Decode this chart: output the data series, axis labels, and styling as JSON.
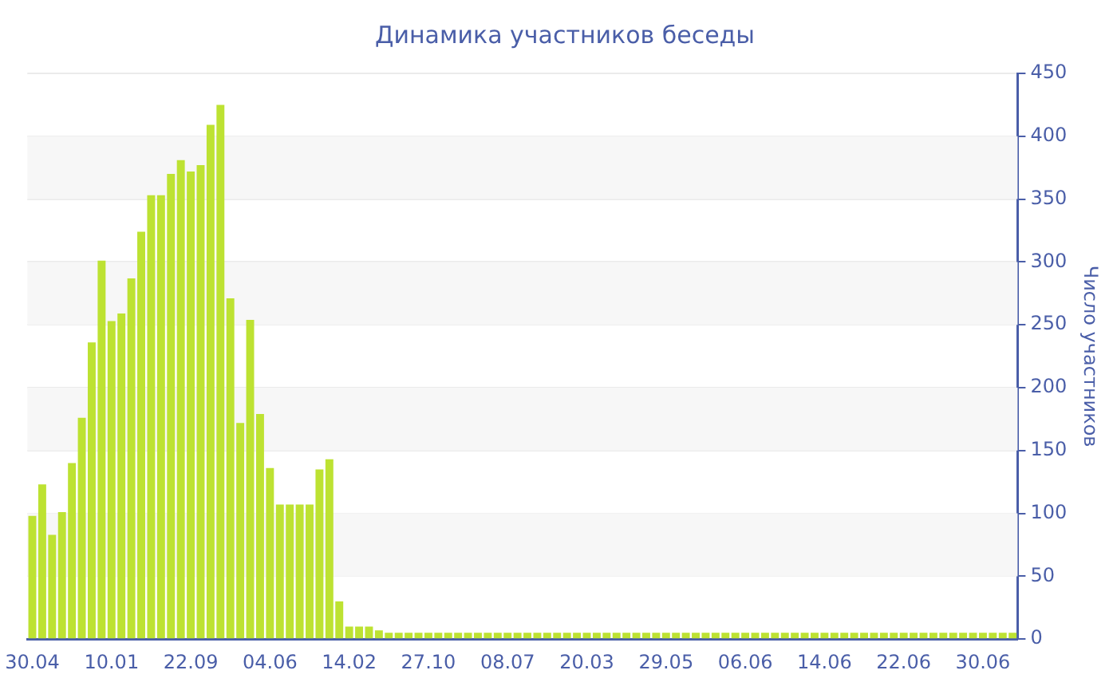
{
  "chart_data": {
    "type": "bar",
    "title": "Динамика участников беседы",
    "ylabel": "Число участников",
    "categories": [
      "30.04",
      null,
      null,
      null,
      null,
      null,
      null,
      null,
      "10.01",
      null,
      null,
      null,
      null,
      null,
      null,
      null,
      "22.09",
      null,
      null,
      null,
      null,
      null,
      null,
      null,
      "04.06",
      null,
      null,
      null,
      null,
      null,
      null,
      null,
      "14.02",
      null,
      null,
      null,
      null,
      null,
      null,
      null,
      "27.10",
      null,
      null,
      null,
      null,
      null,
      null,
      null,
      "08.07",
      null,
      null,
      null,
      null,
      null,
      null,
      null,
      "20.03",
      null,
      null,
      null,
      null,
      null,
      null,
      null,
      "29.05",
      null,
      null,
      null,
      null,
      null,
      null,
      null,
      "06.06",
      null,
      null,
      null,
      null,
      null,
      null,
      null,
      "14.06",
      null,
      null,
      null,
      null,
      null,
      null,
      null,
      "22.06",
      null,
      null,
      null,
      null,
      null,
      null,
      null,
      "30.06",
      null,
      null,
      null
    ],
    "values": [
      98,
      123,
      83,
      101,
      140,
      176,
      236,
      301,
      253,
      259,
      287,
      324,
      353,
      353,
      370,
      381,
      372,
      377,
      409,
      425,
      271,
      172,
      254,
      179,
      136,
      107,
      107,
      107,
      107,
      135,
      143,
      30,
      10,
      10,
      10,
      7,
      5,
      5,
      5,
      5,
      5,
      5,
      5,
      5,
      5,
      5,
      5,
      5,
      5,
      5,
      5,
      5,
      5,
      5,
      5,
      5,
      5,
      5,
      5,
      5,
      5,
      5,
      5,
      5,
      5,
      5,
      5,
      5,
      5,
      5,
      5,
      5,
      5,
      5,
      5,
      5,
      5,
      5,
      5,
      5,
      5,
      5,
      5,
      5,
      5,
      5,
      5,
      5,
      5,
      5,
      5,
      5,
      5,
      5,
      5,
      5,
      5,
      5,
      5,
      5
    ],
    "color": "#bde232",
    "ylim": [
      0,
      450
    ],
    "yticks": [
      0,
      50,
      100,
      150,
      200,
      250,
      300,
      350,
      400,
      450
    ],
    "grid": "y",
    "legend": false
  }
}
